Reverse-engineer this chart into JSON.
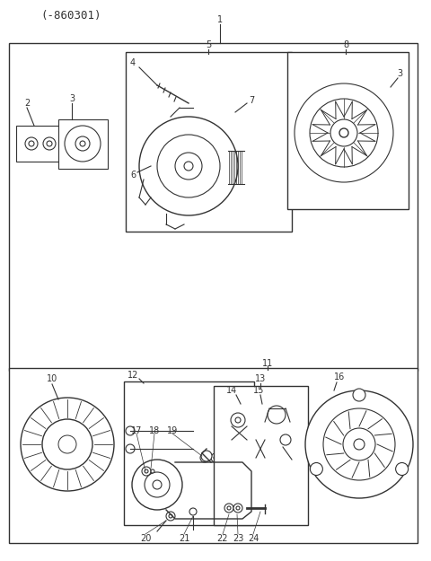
{
  "title": "(-860301)",
  "bg_color": "#ffffff",
  "line_color": "#333333",
  "fig_width": 4.8,
  "fig_height": 6.25,
  "dpi": 100,
  "labels": {
    "header_code": "(-860301)",
    "label1": "1",
    "label2": "2",
    "label3": "3",
    "label4": "4",
    "label5": "5",
    "label6": "6",
    "label7": "7",
    "label8": "8",
    "label10": "10",
    "label11": "11",
    "label12": "12",
    "label13": "13",
    "label14": "14",
    "label15": "15",
    "label16": "16",
    "label17": "17",
    "label18": "18",
    "label19": "19",
    "label20": "20",
    "label21": "21",
    "label22": "22",
    "label23": "23",
    "label24": "24"
  }
}
